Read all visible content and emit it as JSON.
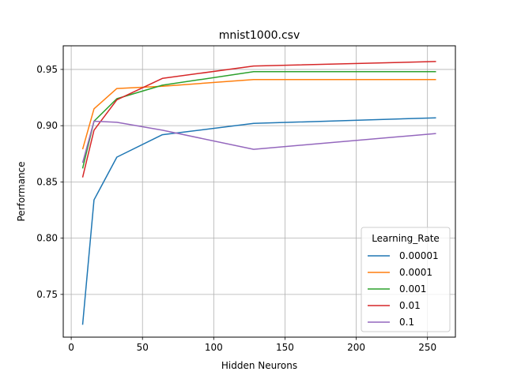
{
  "chart_data": {
    "type": "line",
    "title": "mnist1000.csv",
    "xlabel": "Hidden Neurons",
    "ylabel": "Performance",
    "xlim": [
      -5.6,
      269.6
    ],
    "ylim": [
      0.712,
      0.971
    ],
    "xticks": [
      0,
      50,
      100,
      150,
      200,
      250
    ],
    "yticks": [
      0.75,
      0.8,
      0.85,
      0.9,
      0.95
    ],
    "xtick_labels": [
      "0",
      "50",
      "100",
      "150",
      "200",
      "250"
    ],
    "ytick_labels": [
      "0.75",
      "0.80",
      "0.85",
      "0.90",
      "0.95"
    ],
    "grid": true,
    "legend": {
      "title": "Learning_Rate",
      "placement": "lower-right"
    },
    "x": [
      8,
      16,
      32,
      64,
      128,
      256
    ],
    "series": [
      {
        "name": "0.00001",
        "color": "#1f77b4",
        "values": [
          0.723,
          0.834,
          0.872,
          0.892,
          0.902,
          0.907
        ]
      },
      {
        "name": "0.0001",
        "color": "#ff7f0e",
        "values": [
          0.879,
          0.915,
          0.933,
          0.935,
          0.941,
          0.941
        ]
      },
      {
        "name": "0.001",
        "color": "#2ca02c",
        "values": [
          0.862,
          0.904,
          0.924,
          0.936,
          0.948,
          0.948
        ]
      },
      {
        "name": "0.01",
        "color": "#d62728",
        "values": [
          0.854,
          0.896,
          0.923,
          0.942,
          0.953,
          0.957
        ]
      },
      {
        "name": "0.1",
        "color": "#9467bd",
        "values": [
          0.867,
          0.904,
          0.903,
          0.896,
          0.879,
          0.893
        ]
      }
    ]
  }
}
